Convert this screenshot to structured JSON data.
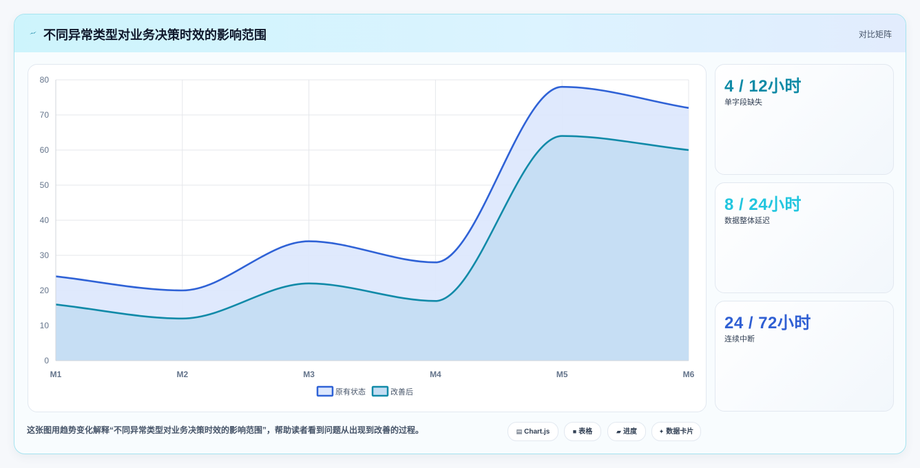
{
  "header": {
    "title": "不同异常类型对业务决策时效的影响范围",
    "tag": "对比矩阵",
    "icon": "lightning-icon"
  },
  "chart_data": {
    "type": "area",
    "categories": [
      "M1",
      "M2",
      "M3",
      "M4",
      "M5",
      "M6"
    ],
    "series": [
      {
        "name": "原有状态",
        "values": [
          24,
          20,
          34,
          28,
          78,
          72
        ],
        "color": "#2f62d6",
        "fill": "#dde8fd"
      },
      {
        "name": "改善后",
        "values": [
          16,
          12,
          22,
          17,
          64,
          60
        ],
        "color": "#118aa8",
        "fill": "#c4ddf3"
      }
    ],
    "yticks": [
      0,
      10,
      20,
      30,
      40,
      50,
      60,
      70,
      80
    ],
    "ylim": [
      0,
      80
    ],
    "grid": true,
    "legend": "bottom"
  },
  "stats": [
    {
      "value": "4 / 12小时",
      "label": "单字段缺失",
      "color": "#0e8aa6"
    },
    {
      "value": "8 / 24小时",
      "label": "数据整体延迟",
      "color": "#22c6df"
    },
    {
      "value": "24 / 72小时",
      "label": "连续中断",
      "color": "#2f5fd3"
    }
  ],
  "footer": {
    "text": "这张图用趋势变化解释“不同异常类型对业务决策时效的影响范围”，帮助读者看到问题从出现到改善的过程。",
    "chips": [
      {
        "icon": "▤",
        "label": "Chart.js"
      },
      {
        "icon": "■",
        "label": "表格"
      },
      {
        "icon": "▰",
        "label": "进度"
      },
      {
        "icon": "✦",
        "label": "数据卡片"
      }
    ]
  }
}
